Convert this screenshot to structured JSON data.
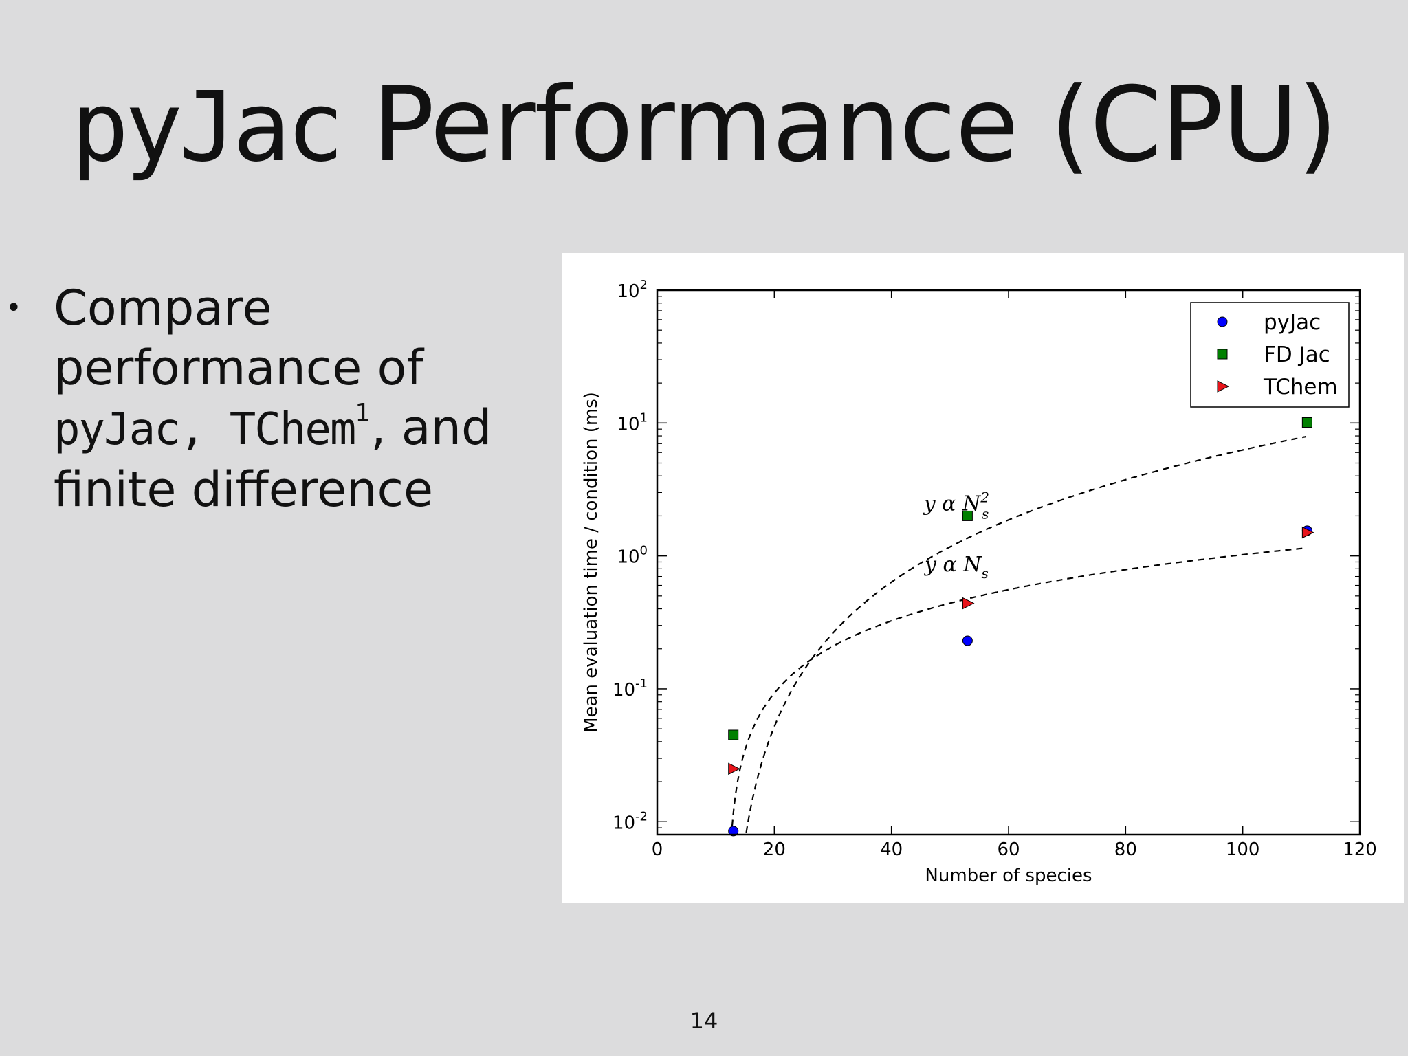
{
  "slide": {
    "title_mono": "pyJac",
    "title_rest": "Performance (CPU)",
    "page_number": "14"
  },
  "bullet": {
    "marker": "•",
    "line1": "Compare",
    "line2": "performance of",
    "line3_mono": "pyJac, TChem",
    "line3_sup": "1",
    "line3_rest": ", and",
    "line4": "finite difference"
  },
  "chart_data": {
    "type": "scatter",
    "xlabel": "Number of species",
    "ylabel": "Mean evaluation time / condition (ms)",
    "xlim": [
      0,
      120
    ],
    "ylim": [
      0.008,
      100
    ],
    "yscale": "log",
    "x_ticks": [
      "0",
      "20",
      "40",
      "60",
      "80",
      "100",
      "120"
    ],
    "y_ticks": [
      {
        "base": "10",
        "exp": "-2"
      },
      {
        "base": "10",
        "exp": "-1"
      },
      {
        "base": "10",
        "exp": "0"
      },
      {
        "base": "10",
        "exp": "1"
      },
      {
        "base": "10",
        "exp": "2"
      }
    ],
    "legend_position": "top-right",
    "series": [
      {
        "name": "pyJac",
        "marker": "circle",
        "color": "#0000ff",
        "points": [
          [
            13,
            0.0085
          ],
          [
            53,
            0.23
          ],
          [
            111,
            1.55
          ]
        ]
      },
      {
        "name": "FD Jac",
        "marker": "square",
        "color": "#008000",
        "points": [
          [
            13,
            0.045
          ],
          [
            53,
            2.0
          ],
          [
            111,
            10.1
          ]
        ]
      },
      {
        "name": "TChem",
        "marker": "triangle-right",
        "color": "#e8141a",
        "points": [
          [
            13,
            0.025
          ],
          [
            53,
            0.44
          ],
          [
            111,
            1.5
          ]
        ]
      }
    ],
    "fits": [
      {
        "label_main": "y α N",
        "label_sub": "s",
        "label_sup": "2",
        "power": 2,
        "scale": 0.00081,
        "at_x": 53
      },
      {
        "label_main": "y α N",
        "label_sub": "s",
        "label_sup": "",
        "power": 1,
        "scale": 0.0116,
        "at_x": 53
      }
    ],
    "colors": {
      "dashed_fit": "#000000",
      "axis": "#000000"
    }
  }
}
